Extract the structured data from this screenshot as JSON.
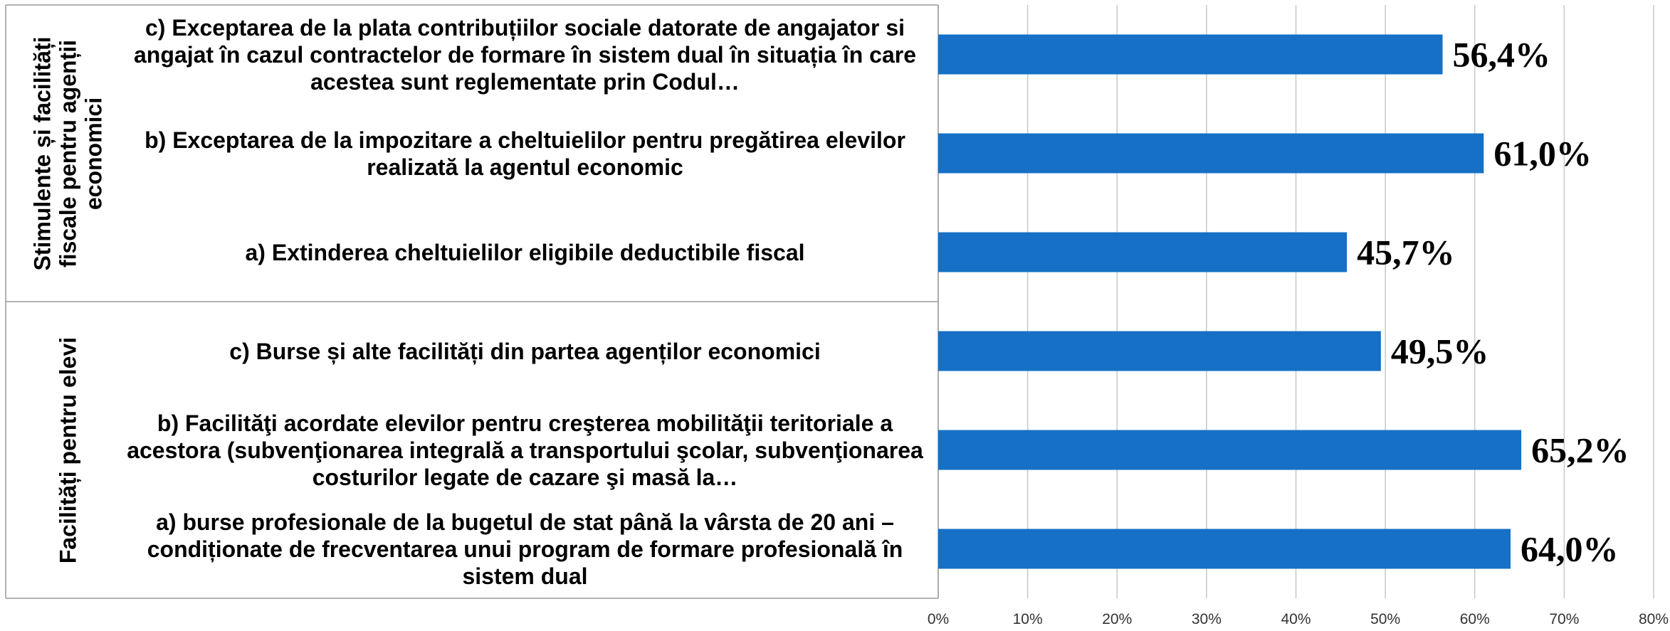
{
  "chart_data": {
    "type": "bar",
    "orientation": "horizontal",
    "color": "#1570c6",
    "xlim": [
      0,
      80
    ],
    "xticks": [
      {
        "value": 0,
        "label": "0%"
      },
      {
        "value": 10,
        "label": "10%"
      },
      {
        "value": 20,
        "label": "20%"
      },
      {
        "value": 30,
        "label": "30%"
      },
      {
        "value": 40,
        "label": "40%"
      },
      {
        "value": 50,
        "label": "50%"
      },
      {
        "value": 60,
        "label": "60%"
      },
      {
        "value": 70,
        "label": "70%"
      },
      {
        "value": 80,
        "label": "80%"
      }
    ],
    "grid": true,
    "groups": [
      {
        "label": "Stimulente și facilități fiscale pentru agenții economici",
        "categories": [
          "c) Exceptarea de la plata contribuțiilor sociale datorate de angajator si angajat în cazul contractelor de formare în sistem dual în situația în care acestea sunt reglementate prin Codul…",
          "b) Exceptarea de la impozitare a cheltuielilor pentru pregătirea elevilor realizată la agentul economic",
          "a) Extinderea cheltuielilor eligibile deductibile fiscal"
        ],
        "values": [
          56.4,
          61.0,
          45.7
        ],
        "value_labels": [
          "56,4%",
          "61,0%",
          "45,7%"
        ]
      },
      {
        "label": "Facilități pentru elevi",
        "categories": [
          "c) Burse și alte facilități din partea agenților economici",
          "b) Facilităţi acordate elevilor pentru creşterea mobilităţii teritoriale a acestora (subvenţionarea integrală a transportului şcolar, subvenţionarea costurilor legate de cazare şi masă la…",
          "a) burse profesionale de la bugetul de stat până la vârsta de 20 ani – condiționate de frecventarea unui program de formare profesională în sistem dual"
        ],
        "values": [
          49.5,
          65.2,
          64.0
        ],
        "value_labels": [
          "49,5%",
          "65,2%",
          "64,0%"
        ]
      }
    ]
  }
}
